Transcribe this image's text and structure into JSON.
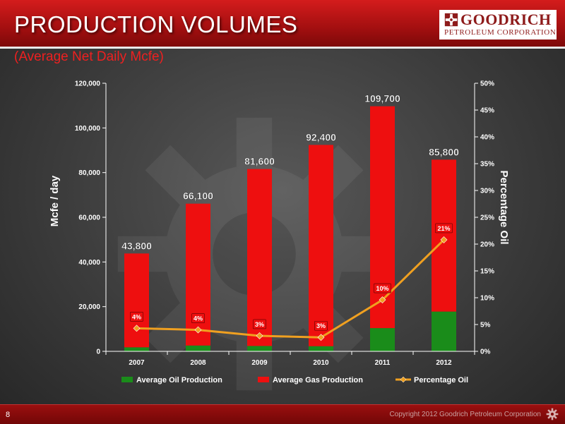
{
  "header": {
    "title": "PRODUCTION VOLUMES",
    "subtitle": "(Average Net Daily Mcfe)"
  },
  "logo": {
    "line1": "GOODRICH",
    "line2": "PETROLEUM CORPORATION",
    "icon": "gear-icon"
  },
  "footer": {
    "page_number": "8",
    "copyright": "Copyright 2012 Goodrich Petroleum Corporation"
  },
  "colors": {
    "oil": "#1a8c1a",
    "gas": "#ee0f0f",
    "percent_line": "#f0a020",
    "header_red": "#b01414",
    "subtitle_red": "#ee2020"
  },
  "chart_data": {
    "type": "bar",
    "stacked": true,
    "categories": [
      "2007",
      "2008",
      "2009",
      "2010",
      "2011",
      "2012"
    ],
    "series": [
      {
        "name": "Average Oil Production",
        "type": "bar",
        "axis": "left",
        "values": [
          1800,
          2600,
          2400,
          2300,
          10400,
          17800
        ]
      },
      {
        "name": "Average Gas Production",
        "type": "bar",
        "axis": "left",
        "values": [
          42000,
          63500,
          79200,
          90100,
          99300,
          68000
        ]
      },
      {
        "name": "Percentage Oil",
        "type": "line",
        "axis": "right",
        "values": [
          4,
          4,
          3,
          3,
          10,
          21
        ]
      }
    ],
    "total_labels": [
      "43,800",
      "66,100",
      "81,600",
      "92,400",
      "109,700",
      "85,800"
    ],
    "percent_labels": [
      "4%",
      "4%",
      "3%",
      "3%",
      "10%",
      "21%"
    ],
    "percent_plot_values": [
      4.3,
      4.0,
      2.9,
      2.6,
      9.6,
      20.8
    ],
    "ylabel": "Mcfe / day",
    "y2label": "Percentage Oil",
    "ylim": [
      0,
      120000
    ],
    "y2lim": [
      0,
      50
    ],
    "y_ticks": [
      "0",
      "20,000",
      "40,000",
      "60,000",
      "80,000",
      "100,000",
      "120,000"
    ],
    "y2_ticks": [
      "0%",
      "5%",
      "10%",
      "15%",
      "20%",
      "25%",
      "30%",
      "35%",
      "40%",
      "45%",
      "50%"
    ],
    "grid": false,
    "legend_position": "bottom"
  }
}
